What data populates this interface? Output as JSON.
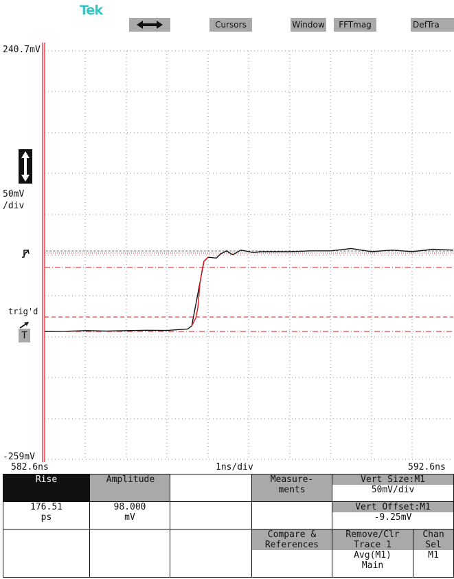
{
  "brand": "Tek",
  "top_menu": {
    "arrow_icon": "horizontal-double-arrow-icon",
    "cursors": "Cursors",
    "window": "Window",
    "fftmag": "FFTmag",
    "deftra": "DefTra"
  },
  "scope": {
    "top_voltage": "240.7mV",
    "bottom_voltage": "-259mV",
    "vert_scale_line1": "50mV",
    "vert_scale_line2": "/div",
    "trig_label": "trig'd",
    "trig_marker": "T",
    "time_start": "582.6ns",
    "time_scale": "1ns/div",
    "time_end": "592.6ns",
    "vert_arrow_icon": "vertical-double-arrow-icon",
    "trigger_icon": "trigger-level-icon",
    "trace_color": "#111111",
    "cursor_color": "#e0151b",
    "waveform": [
      [
        0,
        0
      ],
      [
        0.5,
        0.002
      ],
      [
        1,
        0.01
      ],
      [
        1.5,
        0.005
      ],
      [
        2,
        0.01
      ],
      [
        2.5,
        0.015
      ],
      [
        3,
        0.012
      ],
      [
        3.2,
        0.02
      ],
      [
        3.5,
        0.03
      ],
      [
        3.6,
        0.07
      ],
      [
        3.7,
        0.17
      ],
      [
        3.75,
        0.3
      ],
      [
        3.8,
        0.6
      ],
      [
        3.85,
        0.76
      ],
      [
        3.9,
        0.88
      ],
      [
        4,
        0.93
      ],
      [
        4.2,
        0.92
      ],
      [
        4.3,
        0.97
      ],
      [
        4.45,
        1.01
      ],
      [
        4.6,
        0.96
      ],
      [
        4.8,
        1.02
      ],
      [
        5.1,
        0.99
      ],
      [
        5.3,
        1.0
      ],
      [
        5.6,
        1.0
      ],
      [
        6,
        1.0
      ],
      [
        6.5,
        1.01
      ],
      [
        7,
        1.01
      ],
      [
        7.5,
        1.04
      ],
      [
        8,
        1.0
      ],
      [
        8.5,
        1.02
      ],
      [
        9,
        1.0
      ],
      [
        9.5,
        1.03
      ],
      [
        10,
        1.02
      ]
    ]
  },
  "menu": {
    "rise_label": "Rise",
    "amplitude_label": "Amplitude",
    "measurements_line1": "Measure-",
    "measurements_line2": "ments",
    "vert_size_title": "Vert Size:M1",
    "vert_size_value": "50mV/div",
    "rise_value": "176.51",
    "rise_unit": "ps",
    "amplitude_value": "98.000",
    "amplitude_unit": "mV",
    "vert_offset_title": "Vert Offset:M1",
    "vert_offset_value": "-9.25mV",
    "compare_line1": "Compare &",
    "compare_line2": "References",
    "remove_line1": "Remove/Clr",
    "remove_line2": "Trace 1",
    "remove_line3": "Avg(M1)",
    "remove_line4": "Main",
    "chan_line1": "Chan",
    "chan_line2": "Sel",
    "chan_value": "M1"
  }
}
